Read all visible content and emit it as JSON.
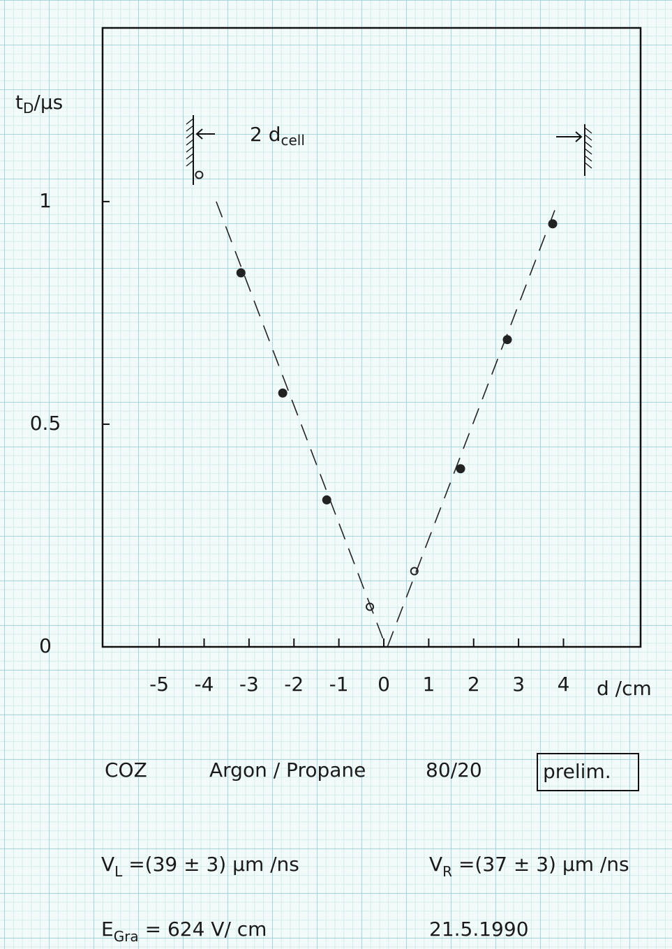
{
  "chart_data": {
    "type": "scatter",
    "ylabel": [
      "t",
      "D",
      "/μs"
    ],
    "xlabel": "d /cm",
    "xlim": [
      -6.26,
      5.67
    ],
    "ylim": [
      0,
      1.39
    ],
    "xticks": [
      -5,
      -4,
      -3,
      -2,
      -1,
      0,
      1,
      2,
      3,
      4
    ],
    "yticks": [
      0,
      0.5,
      1
    ],
    "grid": false,
    "series": [
      {
        "marker": "filled",
        "color": "#222222",
        "x": [
          -3.18,
          -2.25,
          -1.27,
          1.71,
          2.75,
          3.76
        ],
        "values": [
          0.84,
          0.57,
          0.33,
          0.4,
          0.69,
          0.95
        ]
      },
      {
        "marker": "open",
        "color": "#222222",
        "x": [
          -4.11,
          -0.31,
          0.68
        ],
        "values": [
          1.06,
          0.09,
          0.17
        ]
      }
    ],
    "fit_lines": [
      {
        "x": [
          -3.73,
          0.05
        ],
        "values": [
          1,
          0
        ]
      },
      {
        "x": [
          0.08,
          3.88
        ],
        "values": [
          0,
          1
        ]
      }
    ],
    "cell_annotation": [
      "2 d",
      "cell"
    ]
  },
  "notes": {
    "chamber": "COZ",
    "gas": "Argon / Propane",
    "mixture": "80/20",
    "status": "prelim.",
    "v_left": [
      "V",
      "L",
      " =(39 ± 3) μm /ns"
    ],
    "v_right": [
      "V",
      "R",
      " =(37 ± 3) μm /ns"
    ],
    "field": [
      "E",
      "Gra",
      " = 624 V/ cm"
    ],
    "date": "21.5.1990"
  }
}
